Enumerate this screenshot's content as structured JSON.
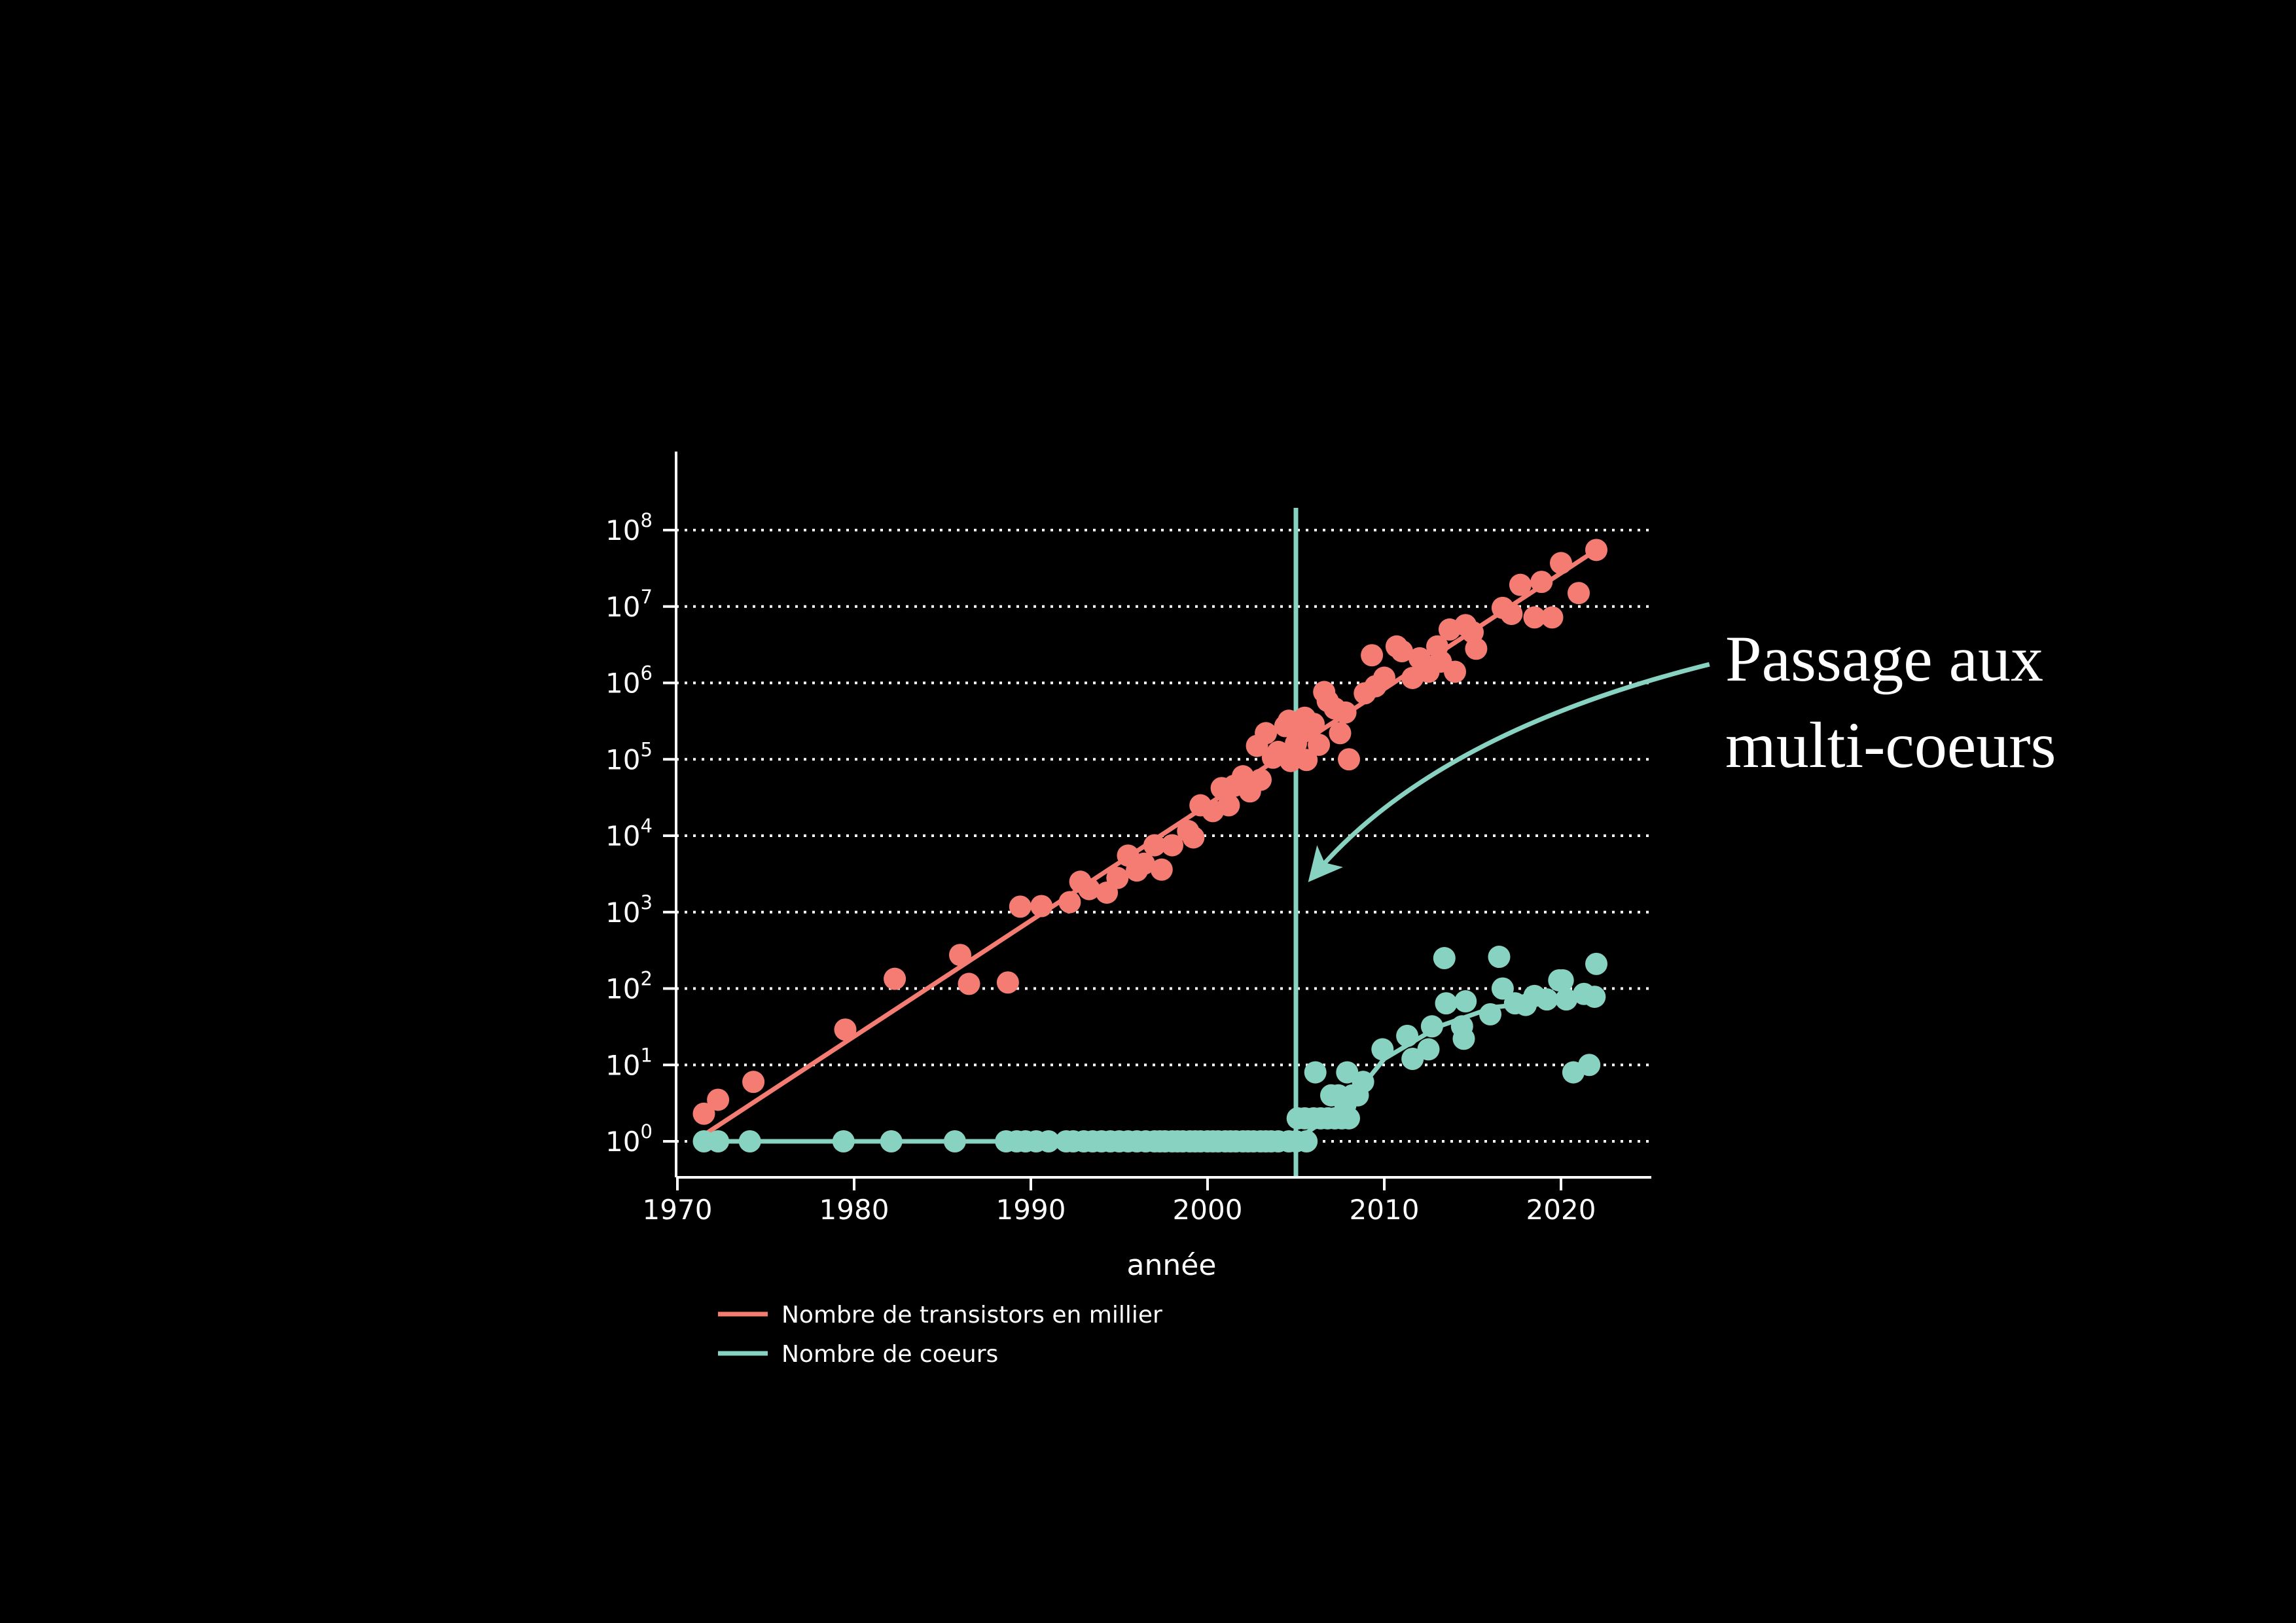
{
  "colors": {
    "background": "#000000",
    "transistors": "#f47c72",
    "cores": "#87d2c1",
    "axis": "#ffffff",
    "grid": "#ffffff",
    "text": "#ffffff"
  },
  "annotation": {
    "line1": "Passage aux",
    "line2": "multi-coeurs"
  },
  "legend": {
    "items": [
      {
        "label": "Nombre de transistors en millier",
        "color": "#f47c72"
      },
      {
        "label": "Nombre de coeurs",
        "color": "#87d2c1"
      }
    ]
  },
  "chart_data": {
    "type": "scatter",
    "title": "",
    "xlabel": "année",
    "ylabel": "",
    "y_scale": "log10",
    "grid": "horizontal-dotted",
    "legend_position": "below-left",
    "x_ticks": [
      1970,
      1980,
      1990,
      2000,
      2010,
      2020
    ],
    "y_tick_powers": [
      0,
      1,
      2,
      3,
      4,
      5,
      6,
      7,
      8
    ],
    "xlim": [
      1969.9,
      2025.2
    ],
    "ylim": [
      0.35,
      350000000
    ],
    "vline": {
      "x": 2005,
      "color": "#87d2c1"
    },
    "annotation": {
      "text_line1": "Passage aux",
      "text_line2": "multi-coeurs",
      "arrow_color": "#87d2c1",
      "arrow_from": [
        2028.4,
        1750000
      ],
      "arrow_ctrl": [
        2012.8,
        220000
      ],
      "arrow_tip": [
        2006.0,
        3000
      ]
    },
    "series": [
      {
        "name": "Nombre de transistors en millier",
        "color": "#f47c72",
        "marker_radius": 17,
        "trend": [
          [
            1971.7,
            1.3
          ],
          [
            2022,
            55000000
          ]
        ],
        "points": [
          [
            1971.5,
            2.3
          ],
          [
            1972.3,
            3.5
          ],
          [
            1974.3,
            6
          ],
          [
            1979.5,
            29
          ],
          [
            1982.3,
            134
          ],
          [
            1986,
            275
          ],
          [
            1986.5,
            115
          ],
          [
            1988.7,
            120
          ],
          [
            1989.4,
            1180
          ],
          [
            1990.6,
            1200
          ],
          [
            1992.2,
            1350
          ],
          [
            1992.8,
            2500
          ],
          [
            1993.3,
            2000
          ],
          [
            1994.3,
            1800
          ],
          [
            1994.9,
            2800
          ],
          [
            1995.5,
            5500
          ],
          [
            1996,
            3500
          ],
          [
            1996.4,
            4300
          ],
          [
            1997,
            7500
          ],
          [
            1997.4,
            3600
          ],
          [
            1998,
            7500
          ],
          [
            1998.9,
            11500
          ],
          [
            1999.2,
            9500
          ],
          [
            1999.6,
            25000
          ],
          [
            2000.3,
            21000
          ],
          [
            2000.8,
            42000
          ],
          [
            2001.2,
            25000
          ],
          [
            2001.5,
            45000
          ],
          [
            2002,
            60000
          ],
          [
            2002.4,
            38000
          ],
          [
            2002.8,
            150000
          ],
          [
            2003,
            54000
          ],
          [
            2003.3,
            220000
          ],
          [
            2003.7,
            105000
          ],
          [
            2004,
            125000
          ],
          [
            2004.4,
            272000
          ],
          [
            2004.6,
            320000
          ],
          [
            2004.7,
            95000
          ],
          [
            2005,
            160000
          ],
          [
            2005.3,
            230000
          ],
          [
            2005.5,
            350000
          ],
          [
            2005.6,
            98000
          ],
          [
            2006,
            291000
          ],
          [
            2006.3,
            155000
          ],
          [
            2006.6,
            760000
          ],
          [
            2006.8,
            580000
          ],
          [
            2007.2,
            463000
          ],
          [
            2007.5,
            220000
          ],
          [
            2007.8,
            410000
          ],
          [
            2008,
            100000
          ],
          [
            2008.9,
            731000
          ],
          [
            2009.3,
            2300000
          ],
          [
            2009.5,
            904000
          ],
          [
            2010,
            1170000
          ],
          [
            2010.7,
            3000000
          ],
          [
            2011,
            2600000
          ],
          [
            2011.6,
            1160000
          ],
          [
            2012,
            2100000
          ],
          [
            2012.5,
            1400000
          ],
          [
            2013,
            3000000
          ],
          [
            2013.2,
            1900000
          ],
          [
            2013.7,
            5000000
          ],
          [
            2014,
            1400000
          ],
          [
            2014.6,
            5700000
          ],
          [
            2015,
            4600000
          ],
          [
            2015.2,
            2800000
          ],
          [
            2016.7,
            9600000
          ],
          [
            2017.2,
            8000000
          ],
          [
            2017.7,
            19200000
          ],
          [
            2018.5,
            7200000
          ],
          [
            2018.9,
            21000000
          ],
          [
            2019.5,
            7200000
          ],
          [
            2020,
            37000000
          ],
          [
            2021,
            15000000
          ],
          [
            2022,
            55000000
          ]
        ]
      },
      {
        "name": "Nombre de coeurs",
        "color": "#87d2c1",
        "marker_radius": 17,
        "trend": [
          [
            1971.7,
            1
          ],
          [
            2004.9,
            1
          ],
          [
            2006.5,
            1.8
          ],
          [
            2008.5,
            4.5
          ],
          [
            2010,
            12
          ],
          [
            2013.1,
            32
          ],
          [
            2016.2,
            57
          ],
          [
            2019.4,
            67
          ],
          [
            2022,
            79
          ]
        ],
        "points": [
          [
            1971.5,
            1
          ],
          [
            1972.3,
            1
          ],
          [
            1974.1,
            1
          ],
          [
            1979.4,
            1
          ],
          [
            1982.1,
            1
          ],
          [
            1985.7,
            1
          ],
          [
            1988.6,
            1
          ],
          [
            1989.2,
            1
          ],
          [
            1989.7,
            1
          ],
          [
            1990.3,
            1
          ],
          [
            1991,
            1
          ],
          [
            1992,
            1
          ],
          [
            1992.4,
            1
          ],
          [
            1993,
            1
          ],
          [
            1993.5,
            1
          ],
          [
            1994,
            1
          ],
          [
            1994.5,
            1
          ],
          [
            1995,
            1
          ],
          [
            1995.5,
            1
          ],
          [
            1996,
            1
          ],
          [
            1996.5,
            1
          ],
          [
            1997,
            1
          ],
          [
            1997.3,
            1
          ],
          [
            1997.6,
            1
          ],
          [
            1998,
            1
          ],
          [
            1998.3,
            1
          ],
          [
            1998.6,
            1
          ],
          [
            1999,
            1
          ],
          [
            1999.3,
            1
          ],
          [
            1999.6,
            1
          ],
          [
            2000,
            1
          ],
          [
            2000.3,
            1
          ],
          [
            2000.6,
            1
          ],
          [
            2001,
            1
          ],
          [
            2001.3,
            1
          ],
          [
            2001.6,
            1
          ],
          [
            2002,
            1
          ],
          [
            2002.3,
            1
          ],
          [
            2002.6,
            1
          ],
          [
            2003,
            1
          ],
          [
            2003.3,
            1
          ],
          [
            2003.6,
            1
          ],
          [
            2004,
            1
          ],
          [
            2004.6,
            1
          ],
          [
            2005,
            1
          ],
          [
            2005.6,
            1
          ],
          [
            2005.1,
            2
          ],
          [
            2005.5,
            2
          ],
          [
            2006,
            2
          ],
          [
            2006.4,
            2
          ],
          [
            2006.8,
            2
          ],
          [
            2007.2,
            2
          ],
          [
            2007.6,
            2
          ],
          [
            2008,
            2
          ],
          [
            2006.1,
            8
          ],
          [
            2007.9,
            8
          ],
          [
            2007,
            4
          ],
          [
            2007.4,
            4
          ],
          [
            2007.8,
            3
          ],
          [
            2008.2,
            4
          ],
          [
            2008.5,
            4
          ],
          [
            2008.8,
            6
          ],
          [
            2009.9,
            16
          ],
          [
            2011.3,
            24
          ],
          [
            2011.6,
            12
          ],
          [
            2012.5,
            16
          ],
          [
            2012.7,
            32
          ],
          [
            2013.4,
            250
          ],
          [
            2013.5,
            64
          ],
          [
            2014.4,
            32
          ],
          [
            2014.5,
            22
          ],
          [
            2014.6,
            68
          ],
          [
            2016,
            46
          ],
          [
            2016.5,
            260
          ],
          [
            2016.7,
            100
          ],
          [
            2017.4,
            64
          ],
          [
            2018,
            61
          ],
          [
            2018.5,
            80
          ],
          [
            2019.2,
            72
          ],
          [
            2019.9,
            128
          ],
          [
            2020.1,
            128
          ],
          [
            2020.3,
            72
          ],
          [
            2020.7,
            8
          ],
          [
            2021.3,
            85
          ],
          [
            2021.6,
            10
          ],
          [
            2021.9,
            78
          ],
          [
            2022,
            210
          ]
        ]
      }
    ]
  }
}
